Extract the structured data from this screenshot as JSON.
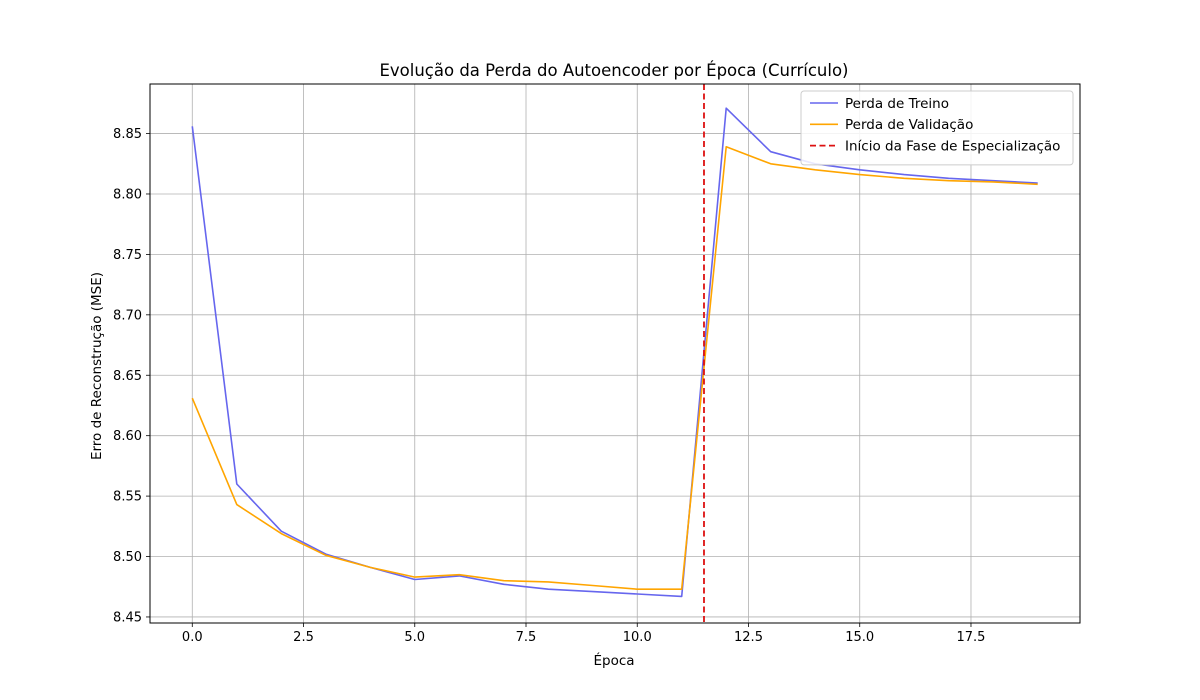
{
  "chart_data": {
    "type": "line",
    "title": "Evolução da Perda do Autoencoder por Época (Currículo)",
    "xlabel": "Época",
    "ylabel": "Erro de Reconstrução (MSE)",
    "xlim": [
      -0.95,
      19.95
    ],
    "ylim": [
      8.445,
      8.891
    ],
    "xticks": [
      0.0,
      2.5,
      5.0,
      7.5,
      10.0,
      12.5,
      15.0,
      17.5
    ],
    "xtick_labels": [
      "0.0",
      "2.5",
      "5.0",
      "7.5",
      "10.0",
      "12.5",
      "15.0",
      "17.5"
    ],
    "yticks": [
      8.45,
      8.5,
      8.55,
      8.6,
      8.65,
      8.7,
      8.75,
      8.8,
      8.85
    ],
    "ytick_labels": [
      "8.45",
      "8.50",
      "8.55",
      "8.60",
      "8.65",
      "8.70",
      "8.75",
      "8.80",
      "8.85"
    ],
    "grid": true,
    "legend_position": "top-right",
    "x": [
      0,
      1,
      2,
      3,
      4,
      5,
      6,
      7,
      8,
      9,
      10,
      11,
      12,
      13,
      14,
      15,
      16,
      17,
      18,
      19
    ],
    "series": [
      {
        "name": "Perda de Treino",
        "color": "#6666ee",
        "values": [
          8.856,
          8.56,
          8.521,
          8.502,
          8.491,
          8.481,
          8.484,
          8.477,
          8.473,
          8.471,
          8.469,
          8.467,
          8.871,
          8.835,
          8.825,
          8.82,
          8.816,
          8.813,
          8.811,
          8.809
        ]
      },
      {
        "name": "Perda de Validação",
        "color": "#ffa500",
        "values": [
          8.631,
          8.543,
          8.519,
          8.501,
          8.491,
          8.483,
          8.485,
          8.48,
          8.479,
          8.476,
          8.473,
          8.473,
          8.839,
          8.825,
          8.82,
          8.816,
          8.813,
          8.811,
          8.81,
          8.808
        ]
      }
    ],
    "vline": {
      "name": "Início da Fase de Especialização",
      "x": 11.5,
      "color": "#dd1111",
      "style": "dashed"
    }
  }
}
